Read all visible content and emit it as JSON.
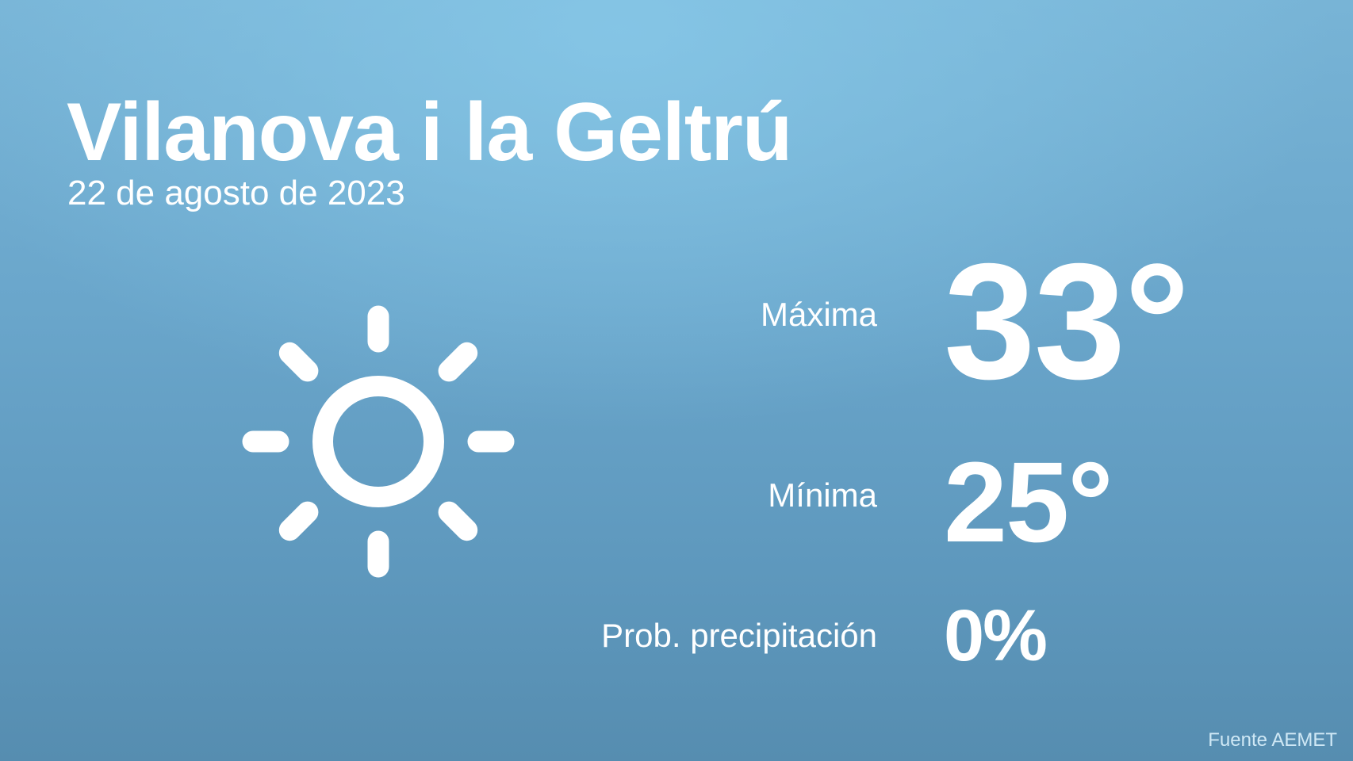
{
  "header": {
    "city": "Vilanova i la Geltrú",
    "date": "22 de agosto de 2023"
  },
  "weather_icon": "sun-icon",
  "forecast": {
    "max_label": "Máxima",
    "max_value": "33°",
    "min_label": "Mínima",
    "min_value": "25°",
    "precip_label": "Prob. precipitación",
    "precip_value": "0%"
  },
  "footer": {
    "source": "Fuente AEMET"
  }
}
